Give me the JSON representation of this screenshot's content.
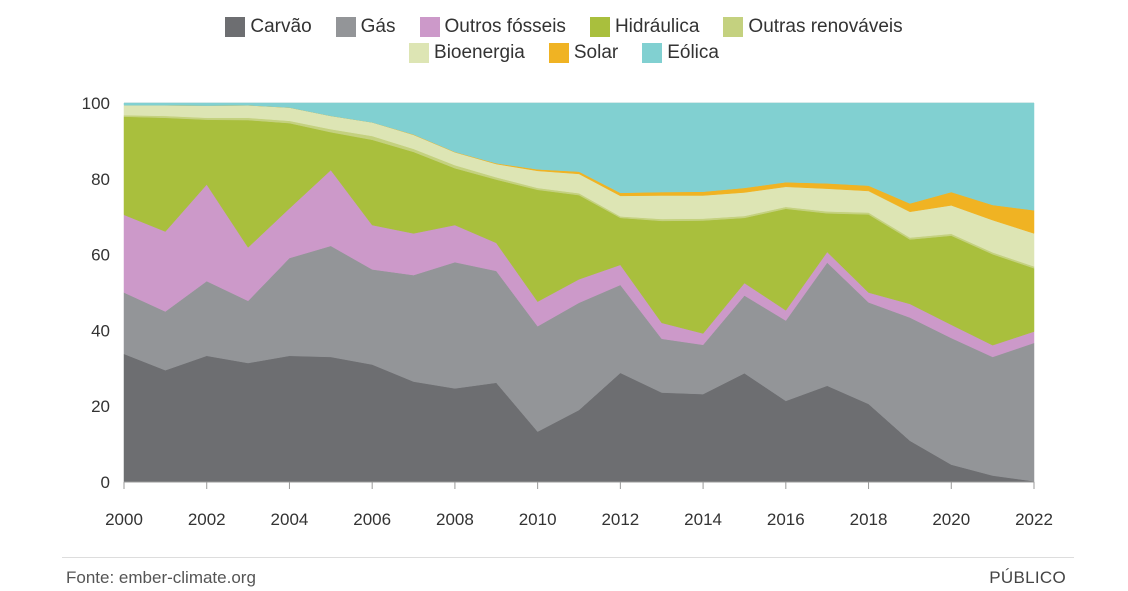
{
  "chart_data": {
    "type": "area",
    "stacked": true,
    "x": [
      2000,
      2001,
      2002,
      2003,
      2004,
      2005,
      2006,
      2007,
      2008,
      2009,
      2010,
      2011,
      2012,
      2013,
      2014,
      2015,
      2016,
      2017,
      2018,
      2019,
      2020,
      2021,
      2022
    ],
    "ylim": [
      0,
      100
    ],
    "yticks": [
      "0",
      "20",
      "40",
      "60",
      "80",
      "100"
    ],
    "xticks": [
      "2000",
      "2002",
      "2004",
      "2006",
      "2008",
      "2010",
      "2012",
      "2014",
      "2016",
      "2018",
      "2020",
      "2022"
    ],
    "legend_position": "top-center",
    "grid": "horizontal",
    "series": [
      {
        "name": "Carvão",
        "color": "#6d6e71",
        "values": [
          33.8,
          29.5,
          33.3,
          31.4,
          33.3,
          33.0,
          31.0,
          26.5,
          24.7,
          26.2,
          13.3,
          19.0,
          28.8,
          23.6,
          23.2,
          28.7,
          21.4,
          25.4,
          20.6,
          10.9,
          4.6,
          1.7,
          0.2
        ]
      },
      {
        "name": "Gás",
        "color": "#939598",
        "values": [
          16.2,
          15.5,
          19.7,
          16.4,
          25.8,
          29.3,
          25.1,
          28.1,
          33.3,
          29.5,
          27.8,
          28.3,
          23.2,
          14.2,
          13.0,
          20.5,
          21.2,
          32.5,
          26.8,
          32.5,
          33.4,
          31.3,
          36.5
        ]
      },
      {
        "name": "Outros fósseis",
        "color": "#cc99c9",
        "values": [
          20.5,
          21.1,
          25.5,
          14.1,
          13.1,
          20.0,
          11.7,
          11.0,
          9.8,
          7.4,
          6.5,
          6.2,
          5.3,
          4.2,
          3.0,
          3.3,
          2.7,
          2.8,
          2.6,
          3.6,
          3.5,
          3.1,
          3.0
        ]
      },
      {
        "name": "Hidráulica",
        "color": "#a9bf3d",
        "values": [
          25.9,
          30.0,
          17.1,
          33.6,
          22.5,
          10.0,
          22.5,
          21.5,
          15.0,
          16.7,
          29.5,
          22.2,
          12.4,
          26.9,
          29.8,
          17.2,
          26.8,
          10.2,
          20.6,
          17.0,
          23.5,
          24.0,
          16.7
        ]
      },
      {
        "name": "Outras renováveis",
        "color": "#c4d17f",
        "values": [
          0.4,
          0.5,
          0.5,
          0.6,
          0.6,
          0.8,
          1.0,
          0.8,
          0.8,
          0.6,
          0.5,
          0.5,
          0.4,
          0.5,
          0.5,
          0.5,
          0.5,
          0.5,
          0.5,
          0.5,
          0.5,
          0.5,
          0.5
        ]
      },
      {
        "name": "Bioenergia",
        "color": "#dde5b4",
        "values": [
          2.6,
          2.8,
          3.2,
          3.3,
          3.5,
          3.5,
          3.6,
          3.7,
          3.4,
          3.5,
          4.5,
          5.1,
          5.4,
          6.2,
          6.1,
          6.2,
          5.3,
          6.0,
          5.7,
          6.8,
          7.5,
          8.5,
          8.7
        ]
      },
      {
        "name": "Solar",
        "color": "#f0b323",
        "values": [
          0.0,
          0.0,
          0.0,
          0.0,
          0.0,
          0.0,
          0.0,
          0.1,
          0.1,
          0.2,
          0.4,
          0.6,
          0.8,
          0.9,
          1.0,
          1.2,
          1.2,
          1.4,
          1.4,
          2.2,
          3.5,
          4.0,
          6.1
        ]
      },
      {
        "name": "Eólica",
        "color": "#81d0d1",
        "values": [
          0.6,
          0.6,
          0.7,
          0.6,
          1.2,
          3.4,
          5.1,
          8.3,
          12.9,
          15.9,
          17.5,
          18.1,
          23.7,
          23.5,
          23.4,
          22.4,
          20.9,
          21.2,
          21.8,
          26.5,
          24.0,
          26.9,
          28.3
        ]
      }
    ]
  },
  "footer": {
    "source": "Fonte: ember-climate.org",
    "brand": "PÚBLICO"
  }
}
